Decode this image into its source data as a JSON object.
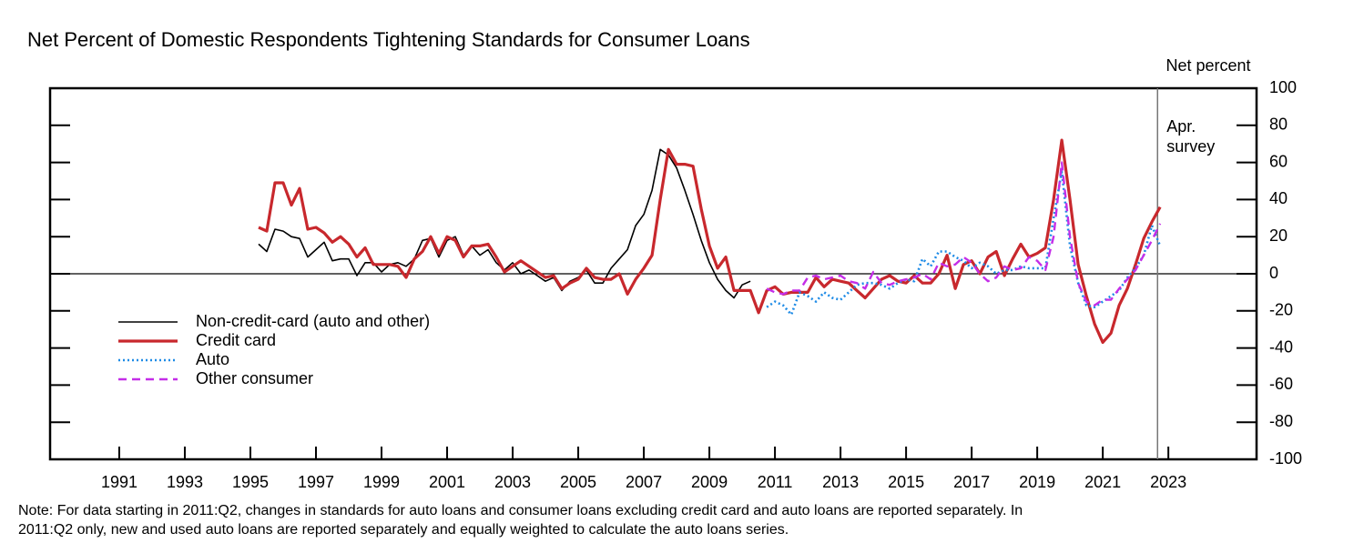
{
  "chart_data": {
    "type": "line",
    "title": "Net Percent of Domestic Respondents Tightening Standards for Consumer Loans",
    "y_axis_label": "Net percent",
    "annotation": {
      "text": [
        "Apr.",
        "survey"
      ],
      "x": 2023.17
    },
    "reference_line_y": 0,
    "note": [
      "Note: For data starting in 2011:Q2, changes in standards for auto loans and consumer loans excluding credit card and auto loans are reported separately. In",
      "2011:Q2 only, new and used auto loans are reported separately and equally weighted to calculate the auto loans series."
    ],
    "xlim": [
      1989.39,
      2026.19
    ],
    "xticks": [
      {
        "value": 1991.5,
        "label": "1991"
      },
      {
        "value": 1993.5,
        "label": "1993"
      },
      {
        "value": 1995.5,
        "label": "1995"
      },
      {
        "value": 1997.5,
        "label": "1997"
      },
      {
        "value": 1999.5,
        "label": "1999"
      },
      {
        "value": 2001.5,
        "label": "2001"
      },
      {
        "value": 2003.5,
        "label": "2003"
      },
      {
        "value": 2005.5,
        "label": "2005"
      },
      {
        "value": 2007.5,
        "label": "2007"
      },
      {
        "value": 2009.5,
        "label": "2009"
      },
      {
        "value": 2011.5,
        "label": "2011"
      },
      {
        "value": 2013.5,
        "label": "2013"
      },
      {
        "value": 2015.5,
        "label": "2015"
      },
      {
        "value": 2017.5,
        "label": "2017"
      },
      {
        "value": 2019.5,
        "label": "2019"
      },
      {
        "value": 2021.5,
        "label": "2021"
      },
      {
        "value": 2023.5,
        "label": "2023"
      }
    ],
    "ylim": [
      -100,
      100
    ],
    "yticks": [
      -100,
      -80,
      -60,
      -40,
      -20,
      0,
      20,
      40,
      60,
      80,
      100
    ],
    "legend": "left",
    "x": [
      1995.75,
      1996,
      1996.25,
      1996.5,
      1996.75,
      1997,
      1997.25,
      1997.5,
      1997.75,
      1998,
      1998.25,
      1998.5,
      1998.75,
      1999,
      1999.25,
      1999.5,
      1999.75,
      2000,
      2000.25,
      2000.5,
      2000.75,
      2001,
      2001.25,
      2001.5,
      2001.75,
      2002,
      2002.25,
      2002.5,
      2002.75,
      2003,
      2003.25,
      2003.5,
      2003.75,
      2004,
      2004.25,
      2004.5,
      2004.75,
      2005,
      2005.25,
      2005.5,
      2005.75,
      2006,
      2006.25,
      2006.5,
      2006.75,
      2007,
      2007.25,
      2007.5,
      2007.75,
      2008,
      2008.25,
      2008.5,
      2008.75,
      2009,
      2009.25,
      2009.5,
      2009.75,
      2010,
      2010.25,
      2010.5,
      2010.75,
      2011,
      2011.25,
      2011.5,
      2011.75,
      2012,
      2012.25,
      2012.5,
      2012.75,
      2013,
      2013.25,
      2013.5,
      2013.75,
      2014,
      2014.25,
      2014.5,
      2014.75,
      2015,
      2015.25,
      2015.5,
      2015.75,
      2016,
      2016.25,
      2016.5,
      2016.75,
      2017,
      2017.25,
      2017.5,
      2017.75,
      2018,
      2018.25,
      2018.5,
      2018.75,
      2019,
      2019.25,
      2019.5,
      2019.75,
      2020,
      2020.25,
      2020.5,
      2020.75,
      2021,
      2021.25,
      2021.5,
      2021.75,
      2022,
      2022.25,
      2022.5,
      2022.75,
      2023,
      2023.25
    ],
    "series": [
      {
        "name": "Non-credit-card (auto and other)",
        "color": "#000000",
        "width": 1.6,
        "dash": "solid",
        "values": [
          16,
          12,
          24,
          23,
          20,
          19,
          9,
          13,
          17,
          7,
          8,
          8,
          -1,
          6,
          6,
          1,
          5,
          6,
          4,
          8,
          18,
          19,
          9,
          18,
          20,
          10,
          15,
          10,
          13,
          6,
          2,
          6,
          0,
          2,
          -1,
          -4,
          -2,
          -9,
          -4,
          -2,
          2,
          -5,
          -5,
          3,
          8,
          13,
          26,
          32,
          45,
          67,
          64,
          57,
          45,
          32,
          18,
          6,
          -3,
          -9,
          -13,
          -6,
          -4,
          null,
          null,
          null,
          null,
          null,
          null,
          null,
          null,
          null,
          null,
          null,
          null,
          null,
          null,
          null,
          null,
          null,
          null,
          null,
          null,
          null,
          null,
          null,
          null,
          null,
          null,
          null,
          null,
          null,
          null,
          null,
          null,
          null,
          null,
          null,
          null,
          null,
          null,
          null,
          null,
          null,
          null,
          null,
          null,
          null,
          null,
          null,
          null,
          null,
          null
        ]
      },
      {
        "name": "Credit card",
        "color": "#c8282d",
        "width": 3.2,
        "dash": "solid",
        "values": [
          25,
          23,
          49,
          49,
          37,
          46,
          24,
          25,
          22,
          17,
          20,
          16,
          9,
          14,
          5,
          5,
          5,
          4,
          -2,
          8,
          12,
          20,
          11,
          20,
          18,
          9,
          15,
          15,
          16,
          9,
          1,
          4,
          7,
          4,
          1,
          -2,
          -1,
          -8,
          -5,
          -3,
          3,
          -2,
          -3,
          -3,
          0,
          -11,
          -3,
          3,
          10,
          40,
          67,
          59,
          59,
          58,
          35,
          15,
          3,
          9,
          -9,
          -9,
          -9,
          -21,
          -9,
          -7,
          -11,
          -10,
          -10,
          -10,
          -2,
          -7,
          -3,
          -4,
          -5,
          -9,
          -13,
          -8,
          -3,
          -1,
          -4,
          -5,
          -1,
          -5,
          -5,
          0,
          10,
          -8,
          5,
          7,
          0,
          9,
          12,
          -1,
          8,
          16,
          9,
          11,
          14,
          40,
          72,
          40,
          5,
          -12,
          -27,
          -37,
          -32,
          -17,
          -8,
          5,
          19,
          28,
          36
        ]
      },
      {
        "name": "Auto",
        "color": "#1e8be6",
        "width": 2.6,
        "dash": "dotted",
        "values": [
          null,
          null,
          null,
          null,
          null,
          null,
          null,
          null,
          null,
          null,
          null,
          null,
          null,
          null,
          null,
          null,
          null,
          null,
          null,
          null,
          null,
          null,
          null,
          null,
          null,
          null,
          null,
          null,
          null,
          null,
          null,
          null,
          null,
          null,
          null,
          null,
          null,
          null,
          null,
          null,
          null,
          null,
          null,
          null,
          null,
          null,
          null,
          null,
          null,
          null,
          null,
          null,
          null,
          null,
          null,
          null,
          null,
          null,
          null,
          null,
          null,
          null,
          -18,
          -15,
          -17,
          -22,
          -10,
          -12,
          -15,
          -10,
          -13,
          -14,
          -10,
          -6,
          -5,
          -5,
          -6,
          -8,
          -5,
          -3,
          -4,
          8,
          4,
          12,
          12,
          9,
          7,
          3,
          6,
          4,
          0,
          2,
          2,
          4,
          3,
          3,
          3,
          30,
          55,
          15,
          -5,
          -17,
          -18,
          -15,
          -12,
          -9,
          -2,
          3,
          10,
          26,
          15
        ]
      },
      {
        "name": "Other consumer",
        "color": "#c42ee8",
        "width": 2.4,
        "dash": "dashed",
        "values": [
          null,
          null,
          null,
          null,
          null,
          null,
          null,
          null,
          null,
          null,
          null,
          null,
          null,
          null,
          null,
          null,
          null,
          null,
          null,
          null,
          null,
          null,
          null,
          null,
          null,
          null,
          null,
          null,
          null,
          null,
          null,
          null,
          null,
          null,
          null,
          null,
          null,
          null,
          null,
          null,
          null,
          null,
          null,
          null,
          null,
          null,
          null,
          null,
          null,
          null,
          null,
          null,
          null,
          null,
          null,
          null,
          null,
          null,
          null,
          null,
          null,
          null,
          -8,
          -10,
          -11,
          -9,
          -9,
          -2,
          -1,
          -3,
          -2,
          -1,
          -4,
          -5,
          -8,
          1,
          -5,
          -6,
          -4,
          -3,
          -2,
          0,
          -3,
          6,
          4,
          5,
          9,
          6,
          0,
          -4,
          -2,
          4,
          2,
          3,
          9,
          7,
          2,
          20,
          60,
          20,
          -5,
          -15,
          -17,
          -14,
          -14,
          -8,
          -3,
          2,
          10,
          18,
          27
        ]
      }
    ]
  }
}
